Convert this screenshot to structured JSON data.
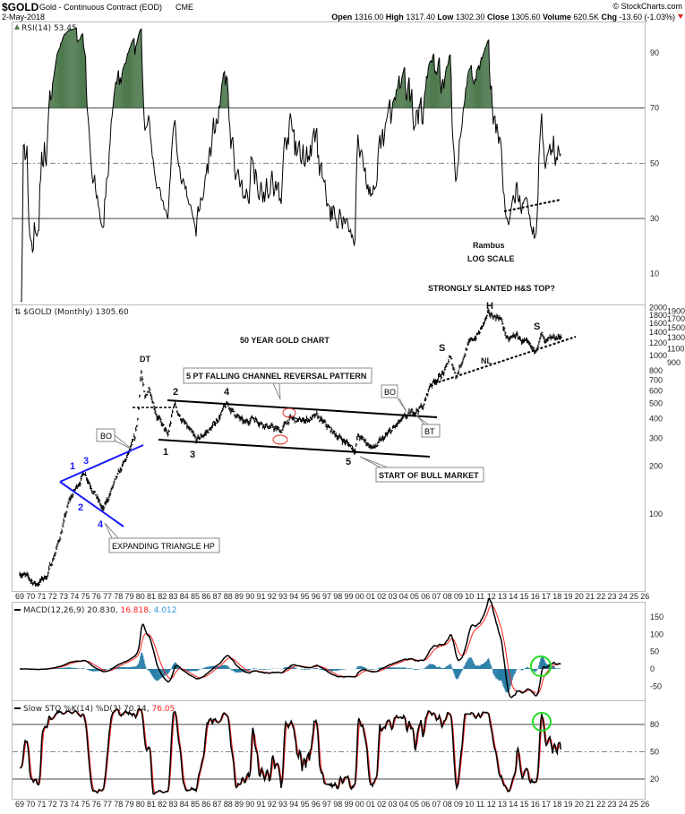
{
  "header": {
    "symbol": "$GOLD",
    "name": "Gold - Continuous Contract (EOD)",
    "exchange": "CME",
    "date": "2-May-2018",
    "copyright": "© StockCharts.com",
    "open_label": "Open",
    "open": "1316.00",
    "high_label": "High",
    "high": "1317.40",
    "low_label": "Low",
    "low": "1302.30",
    "close_label": "Close",
    "close": "1305.60",
    "volume_label": "Volume",
    "volume": "620.5K",
    "chg_label": "Chg",
    "chg": "-13.60 (-1.03%)"
  },
  "colors": {
    "price": "#000000",
    "signal": "#ff2020",
    "histogram": "#2a7fa8",
    "rsi_fill": "#4f7a4f",
    "circle": "#22dd22",
    "triangle": "#1a1aff",
    "red_ellipse": "#e03030"
  },
  "chart_data": [
    {
      "type": "line",
      "panel": "RSI",
      "legend": "RSI(14) 53.45",
      "ylim": [
        0,
        100
      ],
      "yticks": [
        90,
        70,
        50,
        30,
        10
      ],
      "last_value": 53.45,
      "annotations": [
        "Rambus",
        "LOG SCALE",
        "STRONGLY SLANTED H&S TOP?"
      ]
    },
    {
      "type": "bar",
      "panel": "Price",
      "legend": "$GOLD (Monthly) 1305.60",
      "scale": "log",
      "yticks": [
        2000,
        1900,
        1800,
        1700,
        1600,
        1500,
        1400,
        1300,
        1200,
        1100,
        1000,
        900,
        800,
        700,
        600,
        500,
        400,
        300,
        200,
        100
      ],
      "xticks": [
        "69",
        "70",
        "71",
        "72",
        "73",
        "74",
        "75",
        "76",
        "77",
        "78",
        "79",
        "80",
        "81",
        "82",
        "83",
        "84",
        "85",
        "86",
        "87",
        "88",
        "89",
        "90",
        "91",
        "92",
        "93",
        "94",
        "95",
        "96",
        "97",
        "98",
        "99",
        "00",
        "01",
        "02",
        "03",
        "04",
        "05",
        "06",
        "07",
        "08",
        "09",
        "10",
        "11",
        "12",
        "13",
        "14",
        "15",
        "16",
        "17",
        "18",
        "19",
        "20",
        "21",
        "22",
        "23",
        "24",
        "25",
        "26"
      ],
      "price_anchors": [
        [
          1969,
          43
        ],
        [
          1970.5,
          36
        ],
        [
          1971.5,
          41
        ],
        [
          1972.5,
          65
        ],
        [
          1973.5,
          120
        ],
        [
          1974.9,
          185
        ],
        [
          1976.6,
          105
        ],
        [
          1977.5,
          150
        ],
        [
          1978.8,
          230
        ],
        [
          1979.5,
          300
        ],
        [
          1979.8,
          420
        ],
        [
          1980.05,
          830
        ],
        [
          1980.4,
          520
        ],
        [
          1980.8,
          640
        ],
        [
          1981.5,
          420
        ],
        [
          1982.5,
          310
        ],
        [
          1983.1,
          500
        ],
        [
          1983.6,
          410
        ],
        [
          1985.1,
          290
        ],
        [
          1986.5,
          350
        ],
        [
          1987.9,
          490
        ],
        [
          1988.6,
          430
        ],
        [
          1989.5,
          370
        ],
        [
          1990.2,
          410
        ],
        [
          1991.5,
          360
        ],
        [
          1992.8,
          335
        ],
        [
          1993.6,
          400
        ],
        [
          1994.5,
          385
        ],
        [
          1996.1,
          410
        ],
        [
          1997.5,
          330
        ],
        [
          1999.6,
          255
        ],
        [
          1999.8,
          310
        ],
        [
          2001.3,
          260
        ],
        [
          2002.5,
          315
        ],
        [
          2003.5,
          370
        ],
        [
          2004.8,
          440
        ],
        [
          2005.8,
          480
        ],
        [
          2006.4,
          650
        ],
        [
          2007.8,
          800
        ],
        [
          2008.2,
          980
        ],
        [
          2008.8,
          740
        ],
        [
          2009.8,
          1150
        ],
        [
          2010.9,
          1400
        ],
        [
          2011.7,
          1800
        ],
        [
          2012.8,
          1750
        ],
        [
          2013.5,
          1230
        ],
        [
          2014.2,
          1350
        ],
        [
          2015.9,
          1060
        ],
        [
          2016.6,
          1350
        ],
        [
          2016.9,
          1170
        ],
        [
          2017.7,
          1300
        ],
        [
          2018.35,
          1305.6
        ]
      ],
      "last_value": 1305.6,
      "annotations": {
        "title": "50 YEAR GOLD CHART",
        "dt": "DT",
        "channel": "5 PT FALLING CHANNEL REVERSAL PATTERN",
        "bo1": "BO",
        "bo2": "BO",
        "bt": "BT",
        "bull": "START OF BULL MARKET",
        "triangle": "EXPANDING TRIANGLE HP",
        "ch_points": [
          "1",
          "2",
          "3",
          "4",
          "5"
        ],
        "tri_points": [
          "1",
          "2",
          "3",
          "4"
        ],
        "h": "H",
        "s1": "S",
        "s2": "S",
        "nl": "NL"
      }
    },
    {
      "type": "line",
      "panel": "MACD",
      "legend": "MACD(12,26,9)",
      "values": {
        "macd": "20.830",
        "signal": "16.818",
        "histogram": "4.012"
      },
      "yticks": [
        150,
        100,
        50,
        0,
        -50
      ]
    },
    {
      "type": "line",
      "panel": "Slow STO",
      "legend": "Slow STO %K(14) %D(3)",
      "values": {
        "k": "70.14",
        "d": "76.05"
      },
      "ylim": [
        0,
        100
      ],
      "yticks": [
        80,
        50,
        20
      ]
    }
  ]
}
